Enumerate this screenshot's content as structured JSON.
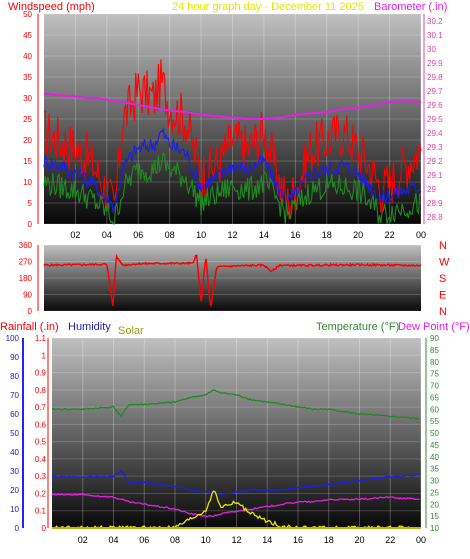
{
  "header": {
    "left_label": "Windspeed (mph)",
    "center_label": "24 hour graph day - December 11 2025",
    "right_label": "Barometer (.in)"
  },
  "colors": {
    "red": "#ff0000",
    "blue": "#1e1ee6",
    "green": "#1f8c1f",
    "magenta": "#e61ee6",
    "yellow": "#e6e600",
    "olive": "#b3b31e",
    "navy": "#2222aa",
    "axis_pink": "#dd44aa",
    "axis_green": "#2e8b2e",
    "panel_dark": "#0a0a0a",
    "panel_light": "#b3b3b3"
  },
  "x_tick_labels": [
    "02",
    "04",
    "06",
    "08",
    "10",
    "12",
    "14",
    "16",
    "18",
    "20",
    "22",
    "00"
  ],
  "chart_data": [
    {
      "type": "line",
      "title": "24 hour graph day - December 11 2025",
      "ylabel": "Windspeed (mph)",
      "y2label": "Barometer (.in)",
      "ylim": [
        0,
        50
      ],
      "y2lim": [
        28.75,
        30.25
      ],
      "y_ticks": [
        "0",
        "5",
        "10",
        "15",
        "20",
        "25",
        "30",
        "35",
        "40",
        "45",
        "50"
      ],
      "y2_ticks": [
        "28.8",
        "28.9",
        "29",
        "29.1",
        "29.2",
        "29.3",
        "29.4",
        "29.5",
        "29.6",
        "29.7",
        "29.8",
        "29.9",
        "30",
        "30.1",
        "30.2"
      ],
      "x_hours": [
        0,
        1,
        2,
        3,
        4,
        4.5,
        5,
        5.5,
        6,
        7,
        7.5,
        8,
        9,
        10,
        11,
        12,
        13,
        14,
        15,
        15.5,
        16,
        17,
        18,
        19,
        20,
        21,
        21.5,
        22,
        23,
        24
      ],
      "series": [
        {
          "color_key": "red",
          "values": [
            22,
            20,
            18,
            15,
            8,
            3,
            25,
            28,
            32,
            30,
            34,
            28,
            25,
            12,
            14,
            20,
            18,
            22,
            10,
            5,
            8,
            18,
            20,
            22,
            18,
            12,
            8,
            10,
            14,
            18
          ]
        },
        {
          "color_key": "blue",
          "values": [
            15,
            14,
            12,
            10,
            6,
            4,
            13,
            16,
            18,
            19,
            22,
            19,
            17,
            9,
            11,
            14,
            13,
            15,
            8,
            5,
            7,
            12,
            13,
            14,
            12,
            8,
            6,
            7,
            8,
            9
          ]
        },
        {
          "color_key": "green",
          "values": [
            10,
            9,
            8,
            6,
            3,
            1,
            8,
            11,
            13,
            13,
            15,
            13,
            11,
            5,
            7,
            9,
            8,
            10,
            5,
            2,
            4,
            8,
            9,
            9,
            8,
            4,
            2,
            3,
            4,
            5
          ]
        },
        {
          "color_key": "magenta",
          "axis": "y2",
          "values": [
            29.68,
            29.67,
            29.66,
            29.65,
            29.64,
            29.63,
            29.62,
            29.61,
            29.6,
            29.58,
            29.57,
            29.56,
            29.55,
            29.53,
            29.52,
            29.51,
            29.5,
            29.5,
            29.51,
            29.52,
            29.53,
            29.54,
            29.55,
            29.57,
            29.58,
            29.6,
            29.61,
            29.62,
            29.63,
            29.62
          ]
        }
      ]
    },
    {
      "type": "line",
      "ylabel": "Wind direction",
      "ylim": [
        0,
        360
      ],
      "y_ticks": [
        "0",
        "90",
        "180",
        "270",
        "360"
      ],
      "compass_labels": [
        "N",
        "W",
        "S",
        "E",
        "N"
      ],
      "x_hours": [
        0,
        2,
        4,
        4.4,
        4.6,
        5,
        6,
        8,
        9.5,
        9.7,
        10,
        10.3,
        10.6,
        11,
        12,
        14,
        14.5,
        15,
        16,
        18,
        20,
        22,
        24
      ],
      "series": [
        {
          "color_key": "red",
          "values": [
            250,
            252,
            255,
            20,
            300,
            250,
            258,
            260,
            260,
            320,
            40,
            300,
            10,
            240,
            245,
            250,
            215,
            250,
            248,
            250,
            252,
            250,
            248
          ]
        }
      ]
    },
    {
      "type": "line",
      "ylabel": "Rainfall (.in)",
      "y_lim_left": [
        0,
        1.1
      ],
      "y_ticks_rain": [
        "0",
        "0.1",
        "0.2",
        "0.3",
        "0.4",
        "0.5",
        "0.6",
        "0.7",
        "0.8",
        "0.9",
        "1",
        "1.1"
      ],
      "y_ticks_humidity": [
        "0",
        "10",
        "20",
        "30",
        "40",
        "50",
        "60",
        "70",
        "80",
        "90",
        "100"
      ],
      "y2lim": [
        10,
        90
      ],
      "y2_ticks": [
        "10",
        "15",
        "20",
        "25",
        "30",
        "35",
        "40",
        "45",
        "50",
        "55",
        "60",
        "65",
        "70",
        "75",
        "80",
        "85",
        "90"
      ],
      "labels": {
        "rainfall": "Rainfall (.in)",
        "humidity": "Humidity",
        "solar": "Solar",
        "temperature": "Temperature (°F)",
        "dew_point": "Dew Point (°F)"
      },
      "x_hours": [
        0,
        2,
        4,
        4.5,
        5,
        6,
        8,
        9,
        10,
        10.5,
        11,
        12,
        13,
        14,
        15,
        16,
        17,
        18,
        20,
        22,
        24
      ],
      "series": [
        {
          "name": "Temperature (°F)",
          "color_key": "green",
          "axis": "y2",
          "values": [
            60,
            60,
            61,
            57,
            62,
            62,
            63,
            65,
            66,
            68,
            67,
            66,
            64,
            63,
            62,
            61,
            60,
            60,
            58,
            57,
            56
          ]
        },
        {
          "name": "Dew Point (°F)",
          "color_key": "magenta",
          "axis": "y2",
          "values": [
            24,
            24,
            23,
            22,
            21,
            20,
            18,
            16,
            15,
            15,
            16,
            17,
            18,
            19,
            20,
            21,
            21,
            22,
            22,
            23,
            22
          ]
        },
        {
          "name": "Humidity",
          "color_key": "blue",
          "axis": "humidity",
          "values": [
            27,
            27,
            27,
            30,
            24,
            24,
            22,
            20,
            19,
            18,
            18,
            19,
            20,
            20,
            20,
            21,
            22,
            23,
            25,
            27,
            28
          ]
        },
        {
          "name": "Solar",
          "color_key": "yellow",
          "axis": "rain",
          "values": [
            0,
            0,
            0,
            0,
            0,
            0,
            0,
            0.05,
            0.1,
            0.22,
            0.12,
            0.15,
            0.08,
            0.04,
            0.01,
            0,
            0,
            0,
            0,
            0,
            0
          ]
        },
        {
          "name": "Rainfall (.in)",
          "color_key": "olive",
          "axis": "rain",
          "values": [
            0,
            0,
            0,
            0,
            0,
            0,
            0,
            0,
            0,
            0,
            0,
            0,
            0,
            0,
            0,
            0,
            0,
            0,
            0,
            0,
            0
          ]
        }
      ]
    }
  ]
}
